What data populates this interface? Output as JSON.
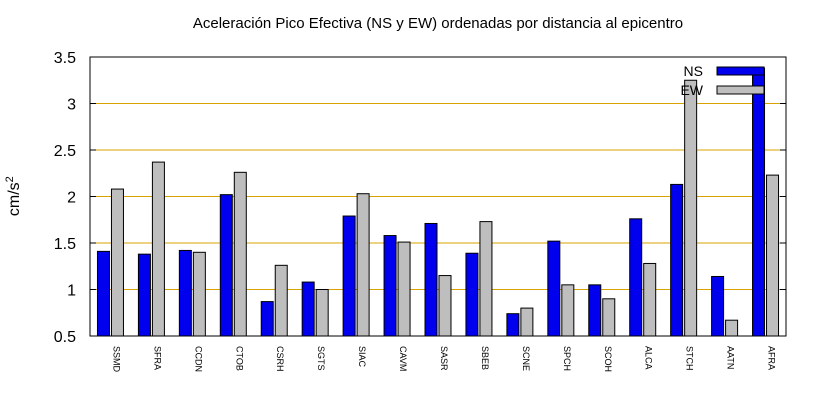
{
  "chart_data": {
    "type": "bar",
    "title": "Aceleración Pico Efectiva (NS y EW) ordenadas por distancia al epicentro",
    "ylabel": "cm/s",
    "ylabel_superscript": "2",
    "xlabel": "",
    "ylim": [
      0.5,
      3.5
    ],
    "yticks": [
      "0.5",
      "1",
      "1.5",
      "2",
      "2.5",
      "3",
      "3.5"
    ],
    "grid": "horizontal",
    "legend_position": "top-right",
    "categories": [
      "SSMD",
      "SFRA",
      "CCDN",
      "CTOB",
      "CSRH",
      "SGTS",
      "SIAC",
      "CAVM",
      "SASR",
      "SBEB",
      "SCNE",
      "SPCH",
      "SCOH",
      "ALCA",
      "STCH",
      "AATN",
      "AFRA"
    ],
    "series": [
      {
        "name": "NS",
        "color": "#0000ee",
        "values": [
          1.41,
          1.38,
          1.42,
          2.02,
          0.87,
          1.08,
          1.79,
          1.58,
          1.71,
          1.39,
          0.74,
          1.52,
          1.05,
          1.76,
          2.13,
          1.14,
          3.38
        ]
      },
      {
        "name": "EW",
        "color": "#bebebe",
        "values": [
          2.08,
          2.37,
          1.4,
          2.26,
          1.26,
          1.0,
          2.03,
          1.51,
          1.15,
          1.73,
          0.8,
          1.05,
          0.9,
          1.28,
          3.25,
          0.67,
          2.23
        ]
      }
    ]
  }
}
